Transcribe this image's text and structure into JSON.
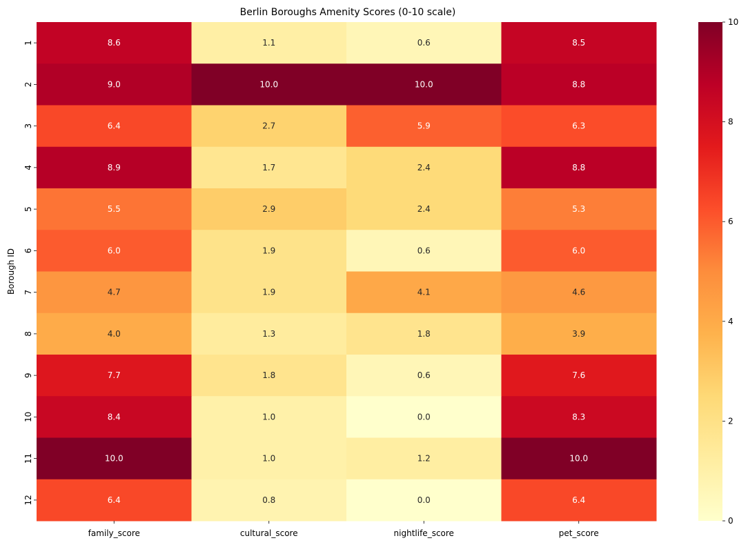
{
  "chart_data": {
    "type": "heatmap",
    "title": "Berlin Boroughs Amenity Scores (0-10 scale)",
    "xlabel": "",
    "ylabel": "Borough ID",
    "columns": [
      "family_score",
      "cultural_score",
      "nightlife_score",
      "pet_score"
    ],
    "rows": [
      "1",
      "2",
      "3",
      "4",
      "5",
      "6",
      "7",
      "8",
      "9",
      "10",
      "11",
      "12"
    ],
    "values": [
      [
        8.6,
        1.1,
        0.6,
        8.5
      ],
      [
        9.0,
        10.0,
        10.0,
        8.8
      ],
      [
        6.4,
        2.7,
        5.9,
        6.3
      ],
      [
        8.9,
        1.7,
        2.4,
        8.8
      ],
      [
        5.5,
        2.9,
        2.4,
        5.3
      ],
      [
        6.0,
        1.9,
        0.6,
        6.0
      ],
      [
        4.7,
        1.9,
        4.1,
        4.6
      ],
      [
        4.0,
        1.3,
        1.8,
        3.9
      ],
      [
        7.7,
        1.8,
        0.6,
        7.6
      ],
      [
        8.4,
        1.0,
        0.0,
        8.3
      ],
      [
        10.0,
        1.0,
        1.2,
        10.0
      ],
      [
        6.4,
        0.8,
        0.0,
        6.4
      ]
    ],
    "annotated": true,
    "colormap": "YlOrRd",
    "vmin": 0,
    "vmax": 10,
    "colorbar_ticks": [
      "0",
      "2",
      "4",
      "6",
      "8",
      "10"
    ],
    "colors": {
      "low": "#ffffcc",
      "high": "#800026"
    }
  }
}
